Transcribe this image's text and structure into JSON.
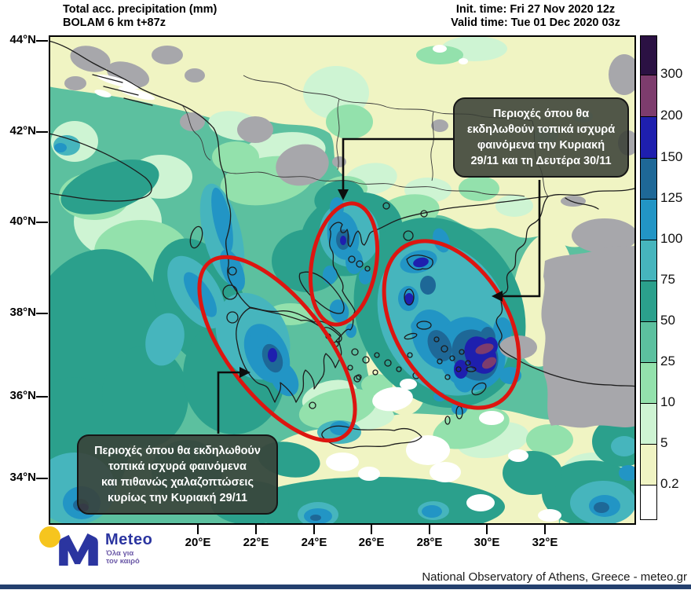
{
  "header": {
    "product_line1": "Total acc. precipitation (mm)",
    "product_line2": "BOLAM 6 km t+87z",
    "init_time": "Init. time: Fri 27 Nov 2020 12z",
    "valid_time": "Valid time: Tue 01 Dec 2020 03z"
  },
  "axes": {
    "lat": [
      "44°N",
      "42°N",
      "40°N",
      "38°N",
      "36°N",
      "34°N"
    ],
    "lon": [
      "20°E",
      "22°E",
      "24°E",
      "26°E",
      "28°E",
      "30°E",
      "32°E"
    ]
  },
  "colorbar": {
    "unit": "mm",
    "labels": [
      "300",
      "200",
      "150",
      "125",
      "100",
      "75",
      "50",
      "25",
      "10",
      "5",
      "0.2"
    ],
    "colors": [
      "#2b1143",
      "#7d3c6d",
      "#1e1fae",
      "#1e6897",
      "#2295c5",
      "#46b5bd",
      "#2ba08c",
      "#5cc09f",
      "#93e1ac",
      "#cef4d3",
      "#f0f4c3",
      "#ffffff"
    ]
  },
  "annotations": {
    "box_northeast": {
      "lines": [
        "Περιοχές όπου θα",
        "εκδηλωθούν τοπικά ισχυρά",
        "φαινόμενα την Κυριακή",
        "29/11 και τη Δευτέρα 30/11"
      ]
    },
    "box_southwest": {
      "lines": [
        "Περιοχές όπου θα εκδηλωθούν",
        "τοπικά ισχυρά φαινόμενα",
        "και πιθανώς χαλαζοπτώσεις",
        "κυρίως την Κυριακή 29/11"
      ]
    },
    "highlight_color": "#dd1510"
  },
  "branding": {
    "brand": "Meteo",
    "tagline_line1": "Όλα για",
    "tagline_line2": "τον καιρό",
    "logo_blue": "#2b35a0",
    "logo_yellow": "#f6c51e",
    "tagline_color": "#6c5aa8"
  },
  "footer": {
    "attribution": "National Observatory of Athens, Greece - meteo.gr",
    "bottom_bar_color": "#24406e"
  }
}
